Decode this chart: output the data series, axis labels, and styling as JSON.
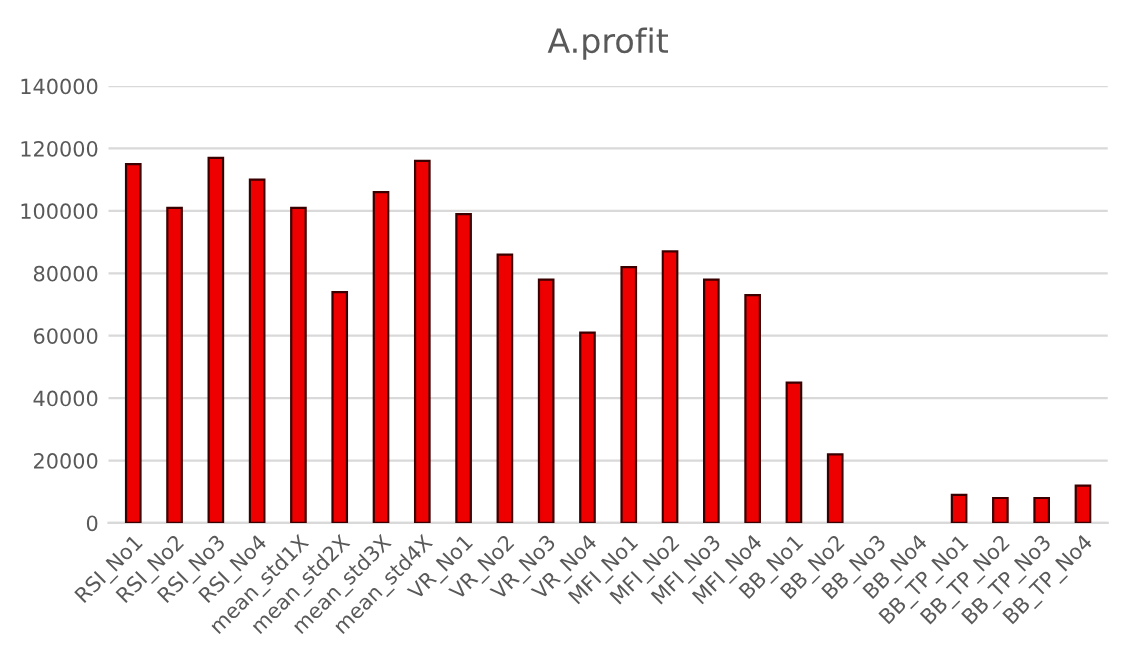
{
  "chart_data": {
    "type": "bar",
    "title": "A.profit",
    "categories": [
      "RSI_No1",
      "RSI_No2",
      "RSI_No3",
      "RSI_No4",
      "mean_std1X",
      "mean_std2X",
      "mean_std3X",
      "mean_std4X",
      "VR_No1",
      "VR_No2",
      "VR_No3",
      "VR_No4",
      "MFI_No1",
      "MFI_No2",
      "MFI_No3",
      "MFI_No4",
      "BB_No1",
      "BB_No2",
      "BB_No3",
      "BB_No4",
      "BB_TP_No1",
      "BB_TP_No2",
      "BB_TP_No3",
      "BB_TP_No4"
    ],
    "values": [
      115000,
      101000,
      117000,
      110000,
      101000,
      74000,
      106000,
      116000,
      99000,
      86000,
      78000,
      61000,
      82000,
      87000,
      78000,
      73000,
      45000,
      22000,
      null,
      null,
      9000,
      8000,
      8000,
      12000
    ],
    "color": "#ee0000",
    "ylim": [
      0,
      140000
    ],
    "yticks": [
      0,
      20000,
      40000,
      60000,
      80000,
      100000,
      120000,
      140000
    ],
    "grid": "y",
    "legend": false
  }
}
